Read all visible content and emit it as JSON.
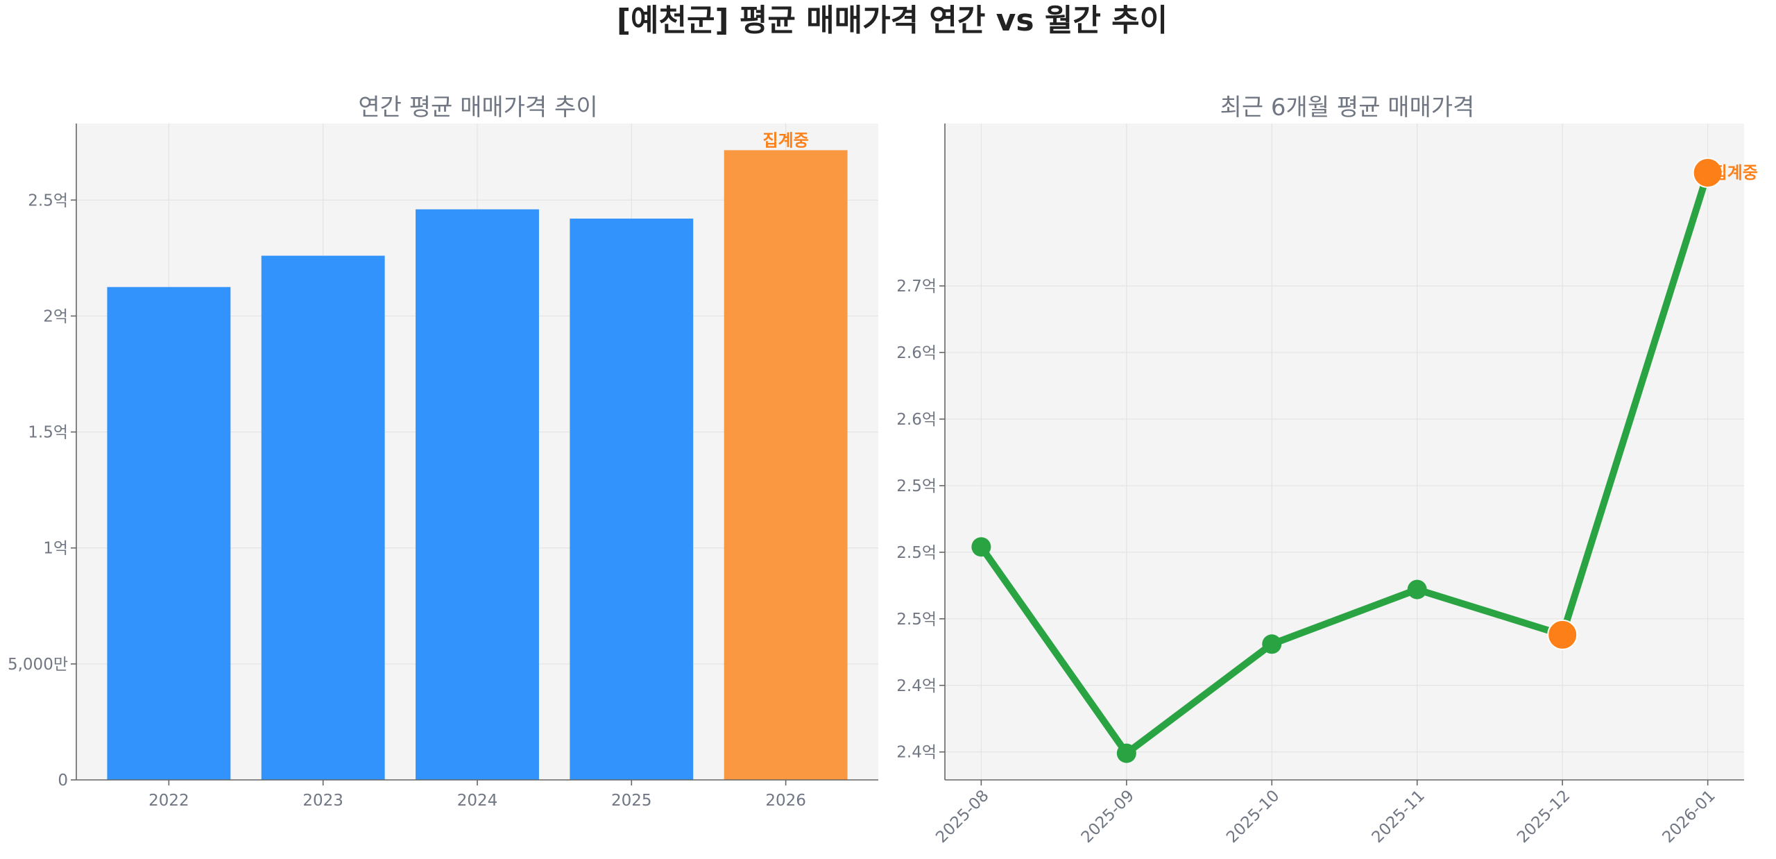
{
  "figure": {
    "title": "[예천군] 평균 매매가격 연간 vs 월간 추이"
  },
  "colors": {
    "bar_normal": "#3193fb",
    "bar_partial": "#f99841",
    "line": "#2aa442",
    "marker_partial": "#fd7f17",
    "annotation": "#fd7f17"
  },
  "chart_data": [
    {
      "type": "bar",
      "title": "연간 평균 매매가격 추이",
      "xlabel": "",
      "ylabel": "",
      "categories": [
        "2022",
        "2023",
        "2024",
        "2025",
        "2026"
      ],
      "values": [
        212500000,
        226000000,
        246000000,
        242000000,
        271500000
      ],
      "partial_index": 4,
      "annotation": "집계중",
      "ylim": [
        0,
        283000000
      ],
      "yticks": [
        {
          "value": 0,
          "label": "0"
        },
        {
          "value": 50000000,
          "label": "5,000만"
        },
        {
          "value": 100000000,
          "label": "1억"
        },
        {
          "value": 150000000,
          "label": "1.5억"
        },
        {
          "value": 200000000,
          "label": "2억"
        },
        {
          "value": 250000000,
          "label": "2.5억"
        }
      ],
      "grid": true
    },
    {
      "type": "line",
      "title": "최근 6개월 평균 매매가격",
      "xlabel": "",
      "ylabel": "",
      "categories": [
        "2025-08",
        "2025-09",
        "2025-10",
        "2025-11",
        "2025-12",
        "2026-01"
      ],
      "values": [
        252900000,
        237400000,
        245600000,
        249700000,
        246300000,
        281000000
      ],
      "partial_index": 4,
      "current_index": 5,
      "annotation": "집계중",
      "ylim": [
        235400000,
        284700000
      ],
      "yticks": [
        {
          "value": 237500000,
          "label": "2.4억"
        },
        {
          "value": 242500000,
          "label": "2.4억"
        },
        {
          "value": 247500000,
          "label": "2.5억"
        },
        {
          "value": 252500000,
          "label": "2.5억"
        },
        {
          "value": 257500000,
          "label": "2.5억"
        },
        {
          "value": 262500000,
          "label": "2.6억"
        },
        {
          "value": 267500000,
          "label": "2.6억"
        },
        {
          "value": 272500000,
          "label": "2.7억"
        }
      ],
      "grid": true
    }
  ]
}
